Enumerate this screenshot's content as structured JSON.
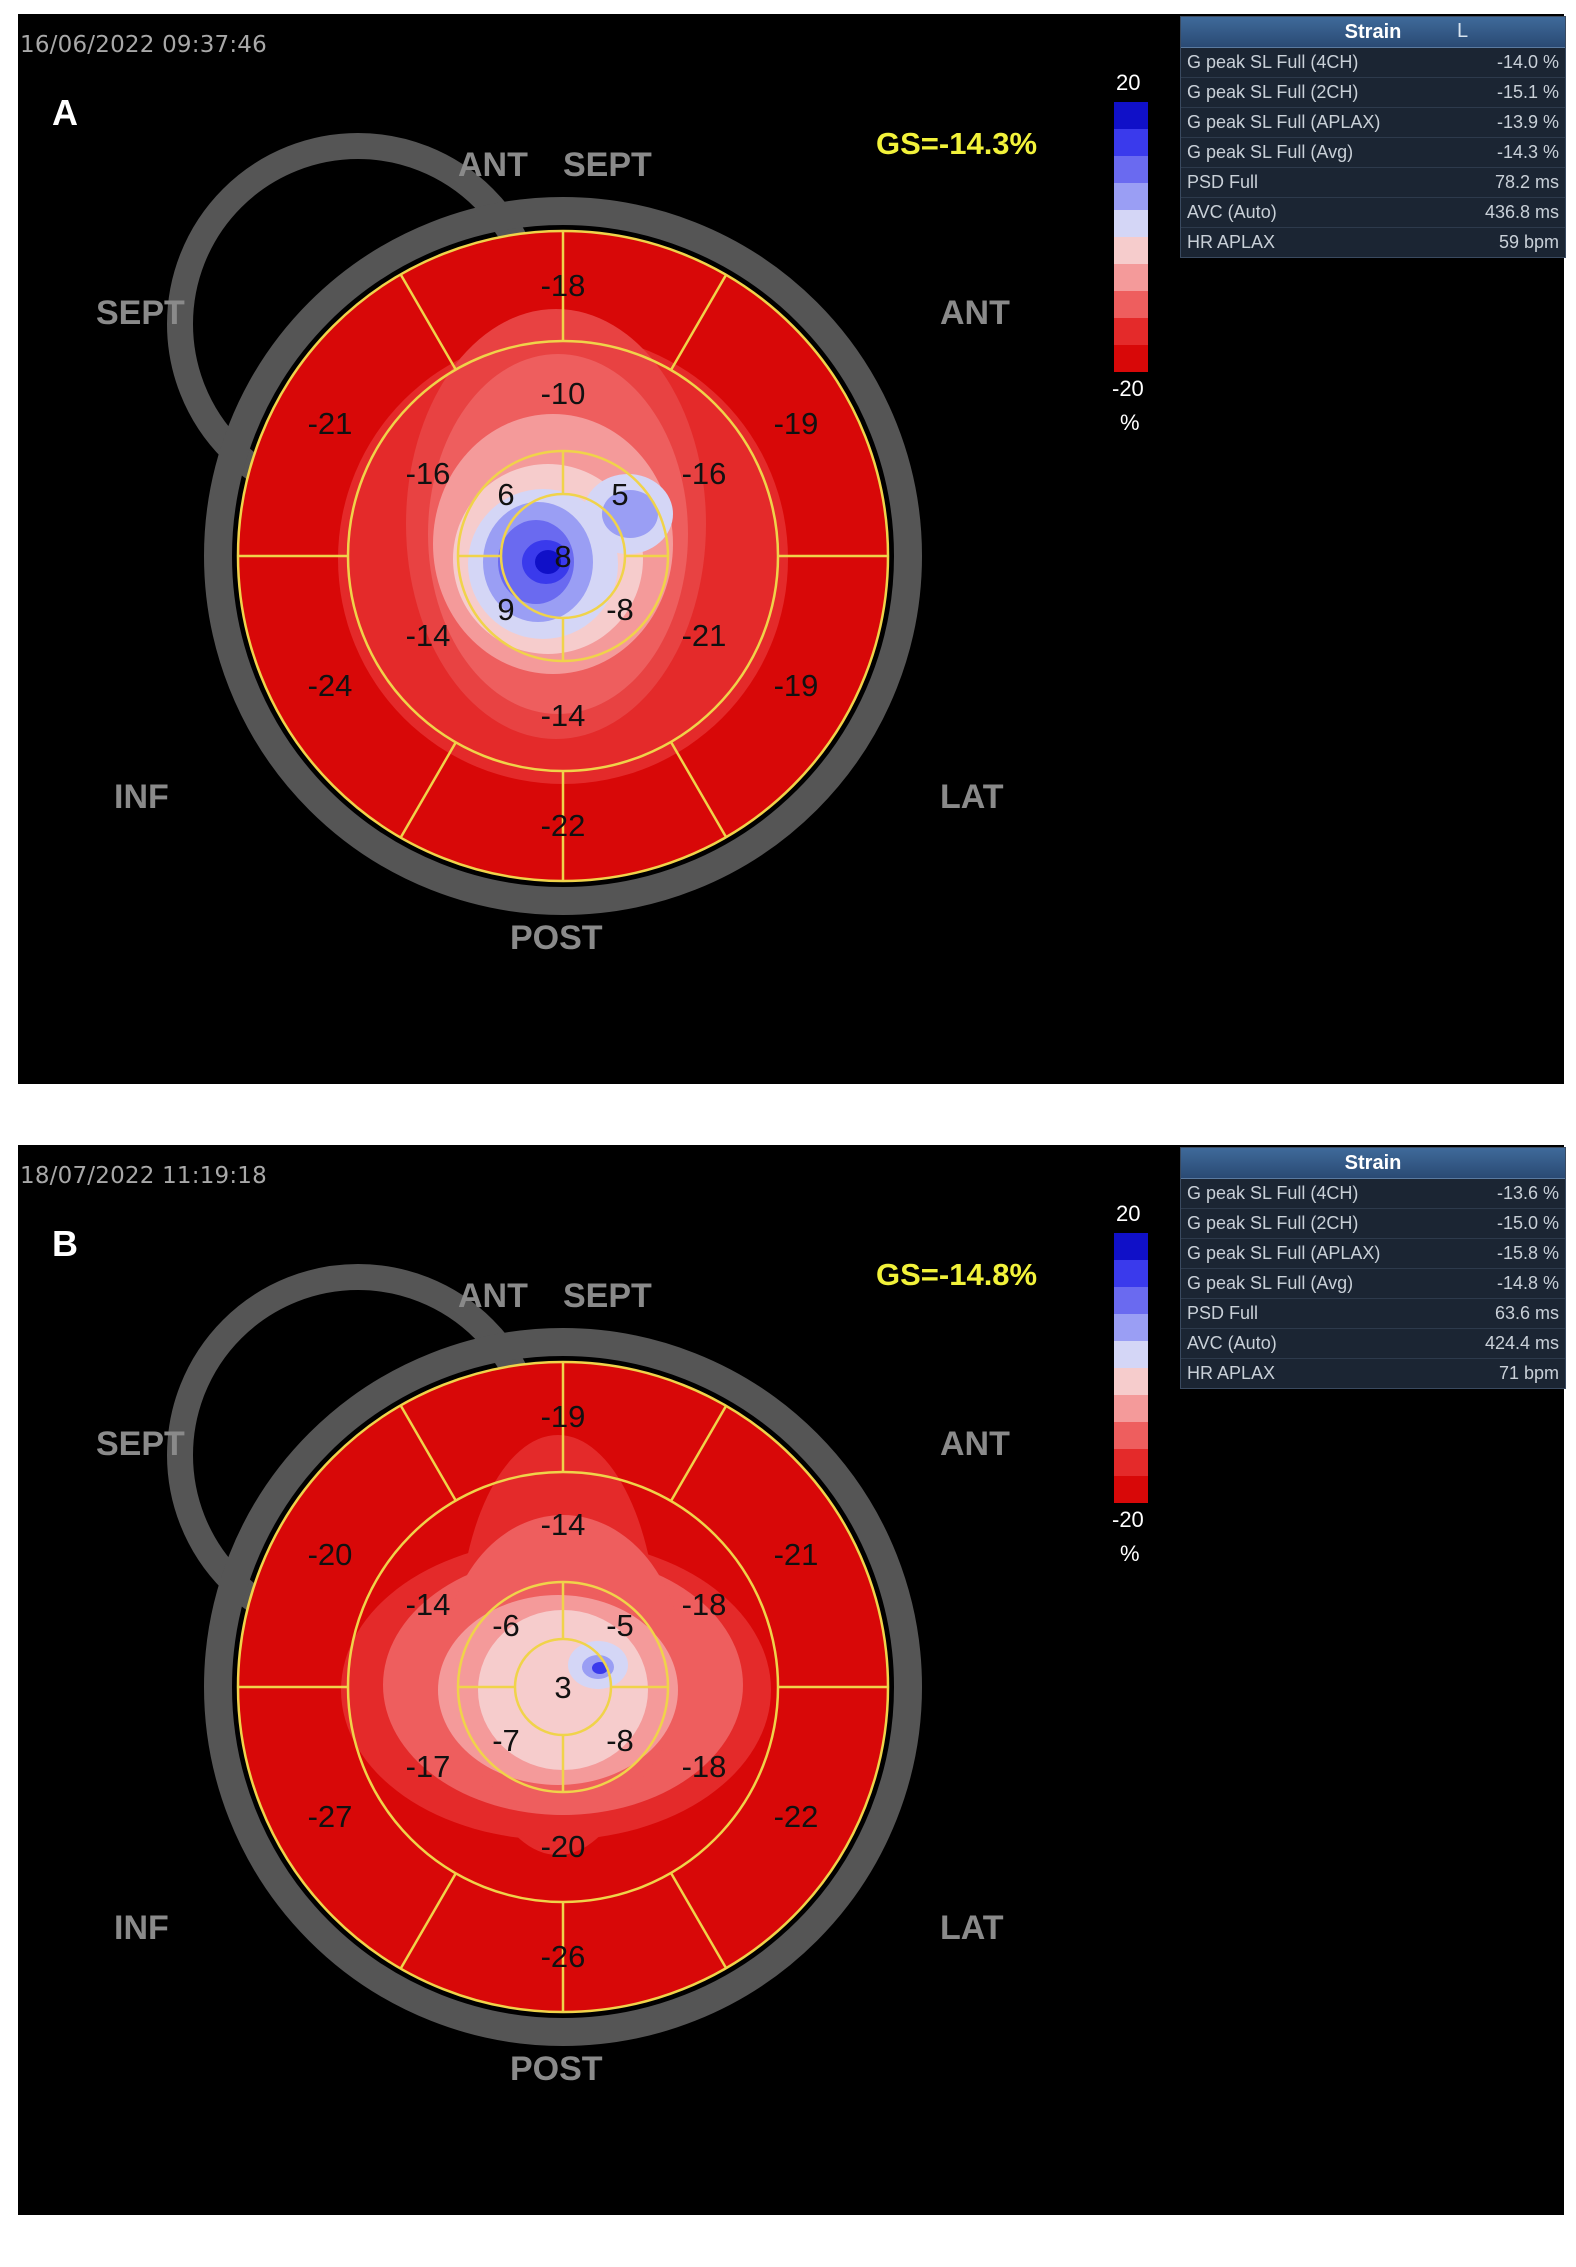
{
  "colors": {
    "background": "#000000",
    "gs_text": "#f2f23a",
    "segment_lines": "#f0d34a",
    "ring": "#555555",
    "strain_header": "#2f5585",
    "colorscale": [
      "#1010c8",
      "#3a3aec",
      "#6a6af0",
      "#9a9ef4",
      "#d4d6f6",
      "#f6cccc",
      "#f49a9a",
      "#ee5e5e",
      "#e42a2a",
      "#d80808"
    ]
  },
  "panels": [
    {
      "letter": "A",
      "timestamp": "16/06/2022 09:37:46",
      "gs": "GS=-14.3%",
      "scale": {
        "max": "20",
        "min": "-20",
        "unit": "%"
      },
      "walls": {
        "ant_sept": "ANT",
        "sept_top": "SEPT",
        "sept": "SEPT",
        "ant": "ANT",
        "inf": "INF",
        "lat": "LAT",
        "post": "POST"
      },
      "segments": {
        "basal": [
          "-18",
          "-19",
          "-19",
          "-22",
          "-24",
          "-21"
        ],
        "mid": [
          "-10",
          "-16",
          "-21",
          "-14",
          "-14",
          "-16"
        ],
        "apical": [
          "5",
          "-8",
          "9",
          "6"
        ],
        "apex": "8"
      },
      "strain_table": {
        "header": "Strain",
        "marker": "L",
        "rows": [
          {
            "label": "G peak SL Full (4CH)",
            "value": "-14.0 %"
          },
          {
            "label": "G peak SL Full (2CH)",
            "value": "-15.1 %"
          },
          {
            "label": "G peak SL Full (APLAX)",
            "value": "-13.9 %"
          },
          {
            "label": "G peak SL Full (Avg)",
            "value": "-14.3 %"
          },
          {
            "label": "PSD Full",
            "value": "78.2 ms"
          },
          {
            "label": "AVC (Auto)",
            "value": "436.8 ms"
          },
          {
            "label": "HR APLAX",
            "value": "59 bpm"
          }
        ]
      }
    },
    {
      "letter": "B",
      "timestamp": "18/07/2022 11:19:18",
      "gs": "GS=-14.8%",
      "scale": {
        "max": "20",
        "min": "-20",
        "unit": "%"
      },
      "walls": {
        "ant_sept": "ANT",
        "sept_top": "SEPT",
        "sept": "SEPT",
        "ant": "ANT",
        "inf": "INF",
        "lat": "LAT",
        "post": "POST"
      },
      "segments": {
        "basal": [
          "-19",
          "-21",
          "-22",
          "-26",
          "-27",
          "-20"
        ],
        "mid": [
          "-14",
          "-18",
          "-18",
          "-20",
          "-17",
          "-14"
        ],
        "apical": [
          "-5",
          "-8",
          "-7",
          "-6"
        ],
        "apex": "3"
      },
      "strain_table": {
        "header": "Strain",
        "marker": "",
        "rows": [
          {
            "label": "G peak SL Full (4CH)",
            "value": "-13.6 %"
          },
          {
            "label": "G peak SL Full (2CH)",
            "value": "-15.0 %"
          },
          {
            "label": "G peak SL Full (APLAX)",
            "value": "-15.8 %"
          },
          {
            "label": "G peak SL Full (Avg)",
            "value": "-14.8 %"
          },
          {
            "label": "PSD Full",
            "value": "63.6 ms"
          },
          {
            "label": "AVC (Auto)",
            "value": "424.4 ms"
          },
          {
            "label": "HR APLAX",
            "value": "71 bpm"
          }
        ]
      }
    }
  ]
}
